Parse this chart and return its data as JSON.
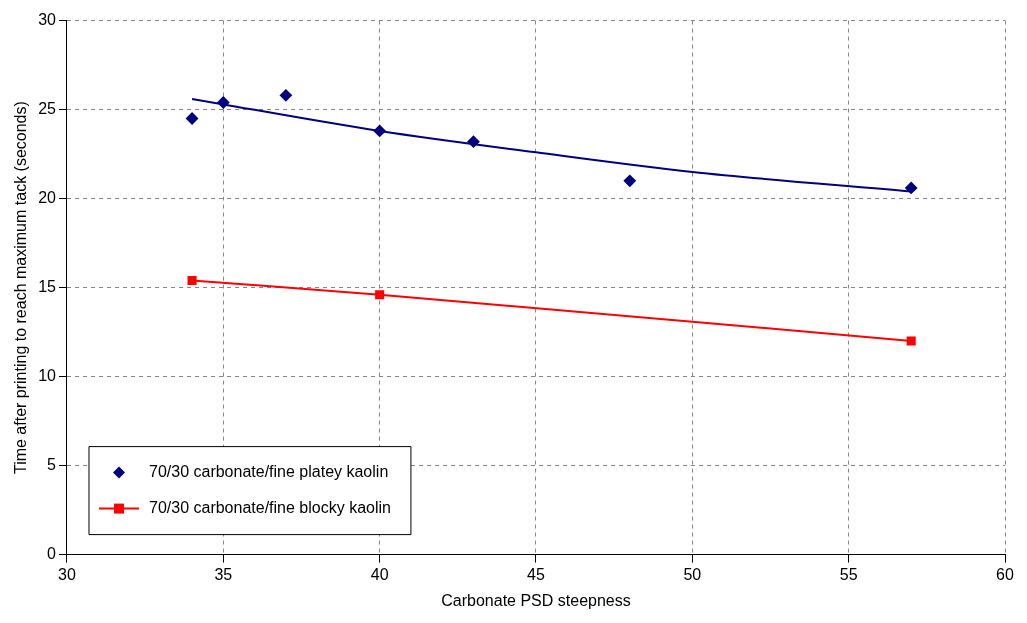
{
  "chart_data": {
    "type": "scatter",
    "xlabel": "Carbonate PSD steepness",
    "ylabel": "Time after printing to reach maximum tack (seconds)",
    "xlim": [
      30,
      60
    ],
    "xticks": [
      30,
      35,
      40,
      45,
      50,
      55,
      60
    ],
    "ylim": [
      0,
      30
    ],
    "yticks": [
      0,
      5,
      10,
      15,
      20,
      25,
      30
    ],
    "grid": true,
    "legend": "bottom left",
    "series": [
      {
        "name": "70/30 carbonate/fine platey kaolin",
        "type": "scatter",
        "color": "#000080",
        "marker": "diamond",
        "x": [
          34,
          35,
          37,
          40,
          43,
          48,
          57
        ],
        "values": [
          24.5,
          25.4,
          25.8,
          23.8,
          23.2,
          21.0,
          20.6
        ]
      },
      {
        "type": "line",
        "color": "#000080",
        "marker": "none",
        "x": [
          34,
          40,
          45,
          50,
          57
        ],
        "values": [
          25.6,
          23.8,
          22.6,
          21.5,
          20.4
        ]
      },
      {
        "name": "70/30 carbonate/fine blocky kaolin",
        "type": "line",
        "color": "#ff0000",
        "marker": "square",
        "x": [
          34,
          40,
          57
        ],
        "values": [
          15.4,
          14.6,
          12.0
        ]
      }
    ]
  }
}
